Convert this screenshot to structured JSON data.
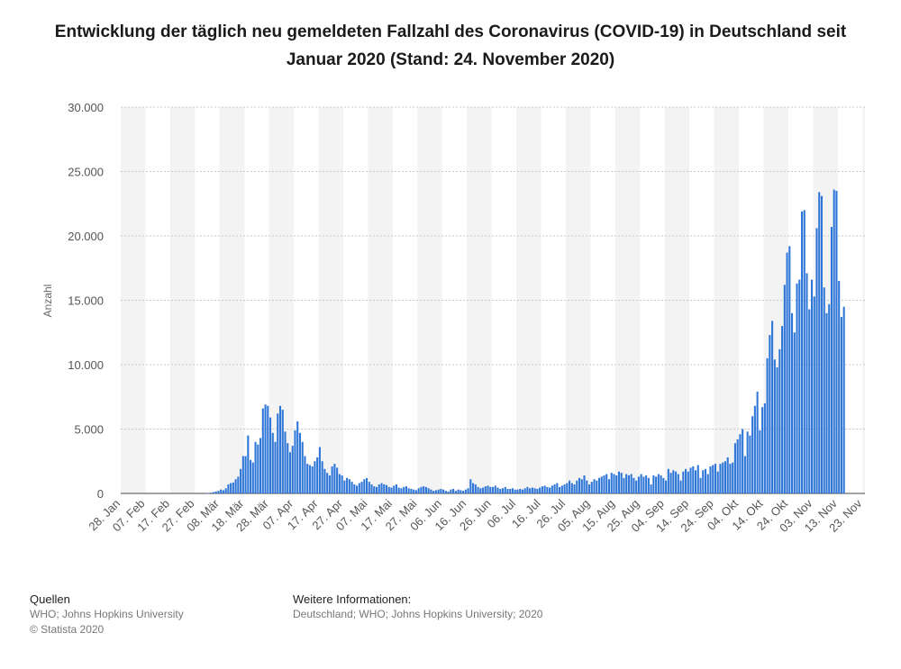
{
  "chart_data": {
    "type": "bar",
    "title": "Entwicklung der täglich neu gemeldeten Fallzahl des Coronavirus (COVID-19) in Deutschland seit Januar 2020 (Stand: 24. November 2020)",
    "xlabel": "",
    "ylabel": "Anzahl",
    "ylim": [
      0,
      30000
    ],
    "yticks": [
      0,
      5000,
      10000,
      15000,
      20000,
      25000,
      30000
    ],
    "ytick_labels": [
      "0",
      "5.000",
      "10.000",
      "15.000",
      "20.000",
      "25.000",
      "30.000"
    ],
    "xtick_labels": [
      "28. Jan",
      "07. Feb",
      "17. Feb",
      "27. Feb",
      "08. Mär",
      "18. Mär",
      "28. Mär",
      "07. Apr",
      "17. Apr",
      "27. Apr",
      "07. Mai",
      "17. Mai",
      "27. Mai",
      "06. Jun",
      "16. Jun",
      "26. Jun",
      "06. Jul",
      "16. Jul",
      "26. Jul",
      "05. Aug",
      "15. Aug",
      "25. Aug",
      "04. Sep",
      "14. Sep",
      "24. Sep",
      "04. Okt",
      "14. Okt",
      "24. Okt",
      "03. Nov",
      "13. Nov",
      "23. Nov"
    ],
    "grid": true,
    "bar_color": "#2f76d9",
    "band_color": "#f3f3f3",
    "x_start": "2020-01-28",
    "x_end": "2020-11-23",
    "series": [
      {
        "values": [
          0,
          0,
          0,
          0,
          0,
          0,
          0,
          0,
          0,
          0,
          0,
          0,
          0,
          0,
          0,
          0,
          0,
          0,
          0,
          0,
          0,
          0,
          0,
          0,
          0,
          0,
          0,
          0,
          0,
          0,
          0,
          0,
          0,
          0,
          15,
          30,
          60,
          100,
          150,
          200,
          300,
          250,
          400,
          700,
          800,
          850,
          1100,
          1300,
          1900,
          2900,
          2900,
          4500,
          2600,
          2400,
          4000,
          3800,
          4300,
          6600,
          6900,
          6800,
          5900,
          4700,
          4000,
          6200,
          6800,
          6500,
          4800,
          3900,
          3200,
          3700,
          4900,
          5600,
          4700,
          4000,
          2900,
          2300,
          2200,
          2100,
          2500,
          2800,
          3600,
          2500,
          1900,
          1600,
          1400,
          2100,
          2300,
          2000,
          1500,
          1400,
          1000,
          1200,
          1100,
          900,
          700,
          600,
          800,
          900,
          1100,
          1200,
          900,
          700,
          550,
          500,
          700,
          800,
          700,
          650,
          500,
          450,
          600,
          700,
          450,
          400,
          500,
          550,
          400,
          350,
          300,
          250,
          400,
          500,
          550,
          500,
          400,
          300,
          200,
          250,
          300,
          350,
          300,
          200,
          150,
          300,
          350,
          200,
          300,
          250,
          200,
          300,
          400,
          1100,
          800,
          700,
          500,
          400,
          450,
          550,
          600,
          500,
          500,
          600,
          450,
          350,
          400,
          500,
          350,
          350,
          400,
          300,
          300,
          350,
          300,
          400,
          500,
          400,
          450,
          400,
          350,
          450,
          550,
          600,
          500,
          450,
          600,
          700,
          800,
          500,
          600,
          700,
          800,
          1000,
          800,
          700,
          1000,
          1200,
          1100,
          1400,
          1000,
          700,
          900,
          1100,
          1000,
          1200,
          1300,
          1400,
          1500,
          1100,
          1600,
          1500,
          1400,
          1700,
          1600,
          1200,
          1500,
          1400,
          1500,
          1200,
          1000,
          1300,
          1500,
          1300,
          1400,
          1200,
          700,
          1400,
          1300,
          1500,
          1400,
          1200,
          1000,
          1900,
          1600,
          1800,
          1700,
          1500,
          1000,
          1700,
          1900,
          1700,
          2000,
          2100,
          1800,
          2200,
          1200,
          1800,
          1900,
          1500,
          2100,
          2200,
          2300,
          1700,
          2300,
          2400,
          2500,
          2800,
          2300,
          2400,
          3900,
          4200,
          4600,
          5000,
          2900,
          4800,
          4500,
          6000,
          6800,
          7900,
          4900,
          6700,
          7000,
          10500,
          12300,
          13400,
          10400,
          9800,
          11200,
          13000,
          16200,
          18700,
          19200,
          14000,
          12500,
          16300,
          16600,
          21900,
          22000,
          17100,
          14300,
          16600,
          15300,
          20600,
          23400,
          23100,
          16000,
          14000,
          14700,
          20700,
          23600,
          23500,
          16500,
          13700,
          14500
        ]
      }
    ]
  },
  "footer": {
    "sources_heading": "Quellen",
    "sources_line1": "WHO; Johns Hopkins University",
    "sources_line2": "© Statista 2020",
    "info_heading": "Weitere Informationen:",
    "info_line1": "Deutschland; WHO; Johns Hopkins University; 2020"
  }
}
